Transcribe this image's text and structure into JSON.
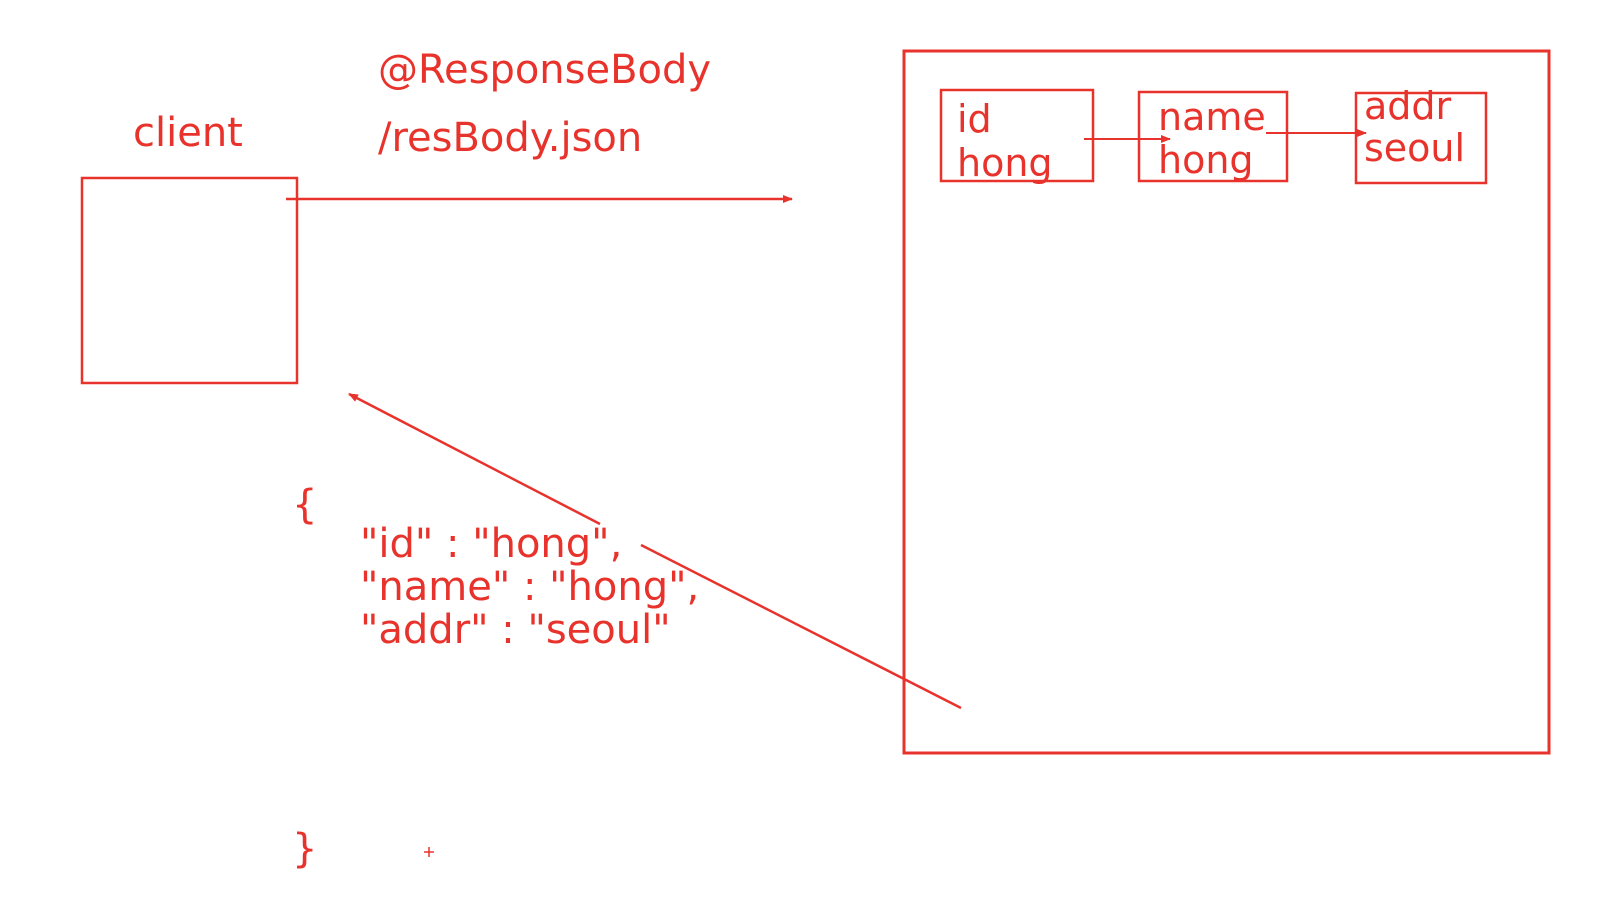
{
  "labels": {
    "client": "client",
    "annotation": "@ResponseBody",
    "url": "/resBody.json"
  },
  "nodes": [
    {
      "key": "id",
      "value": "hong"
    },
    {
      "key": "name",
      "value": "hong"
    },
    {
      "key": "addr",
      "value": "seoul"
    }
  ],
  "json": {
    "open": "{",
    "lines": [
      "\"id\" : \"hong\",",
      "\"name\" : \"hong\",",
      "\"addr\" : \"seoul\""
    ],
    "close": "}"
  },
  "colors": {
    "stroke": "#e8332c"
  }
}
